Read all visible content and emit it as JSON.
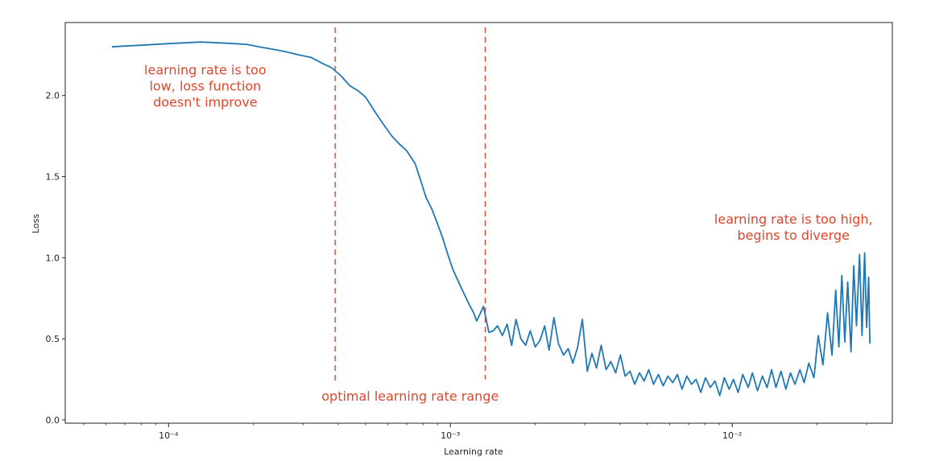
{
  "chart_data": {
    "type": "line",
    "xlabel": "Learning rate",
    "ylabel": "Loss",
    "xscale": "log",
    "xlim": [
      4.3e-05,
      0.037
    ],
    "ylim": [
      -0.02,
      2.45
    ],
    "x_ticks": [
      {
        "value": 0.0001,
        "label": "10⁻⁴"
      },
      {
        "value": 0.001,
        "label": "10⁻³"
      },
      {
        "value": 0.01,
        "label": "10⁻²"
      }
    ],
    "y_ticks": [
      {
        "value": 0.0,
        "label": "0.0"
      },
      {
        "value": 0.5,
        "label": "0.5"
      },
      {
        "value": 1.0,
        "label": "1.0"
      },
      {
        "value": 1.5,
        "label": "1.5"
      },
      {
        "value": 2.0,
        "label": "2.0"
      }
    ],
    "grid": false,
    "line_color": "#1f77b4",
    "annotation_color": "#e0452a",
    "series": [
      {
        "values": [
          [
            6.3e-05,
            2.3
          ],
          [
            7e-05,
            2.305
          ],
          [
            8e-05,
            2.31
          ],
          [
            9e-05,
            2.315
          ],
          [
            0.0001,
            2.32
          ],
          [
            0.000115,
            2.325
          ],
          [
            0.00013,
            2.33
          ],
          [
            0.00015,
            2.325
          ],
          [
            0.00017,
            2.32
          ],
          [
            0.00019,
            2.315
          ],
          [
            0.00021,
            2.3
          ],
          [
            0.000235,
            2.285
          ],
          [
            0.00026,
            2.27
          ],
          [
            0.00029,
            2.25
          ],
          [
            0.00032,
            2.235
          ],
          [
            0.00035,
            2.2
          ],
          [
            0.00038,
            2.17
          ],
          [
            0.00041,
            2.12
          ],
          [
            0.00044,
            2.06
          ],
          [
            0.00047,
            2.03
          ],
          [
            0.0005,
            1.99
          ],
          [
            0.00054,
            1.9
          ],
          [
            0.00058,
            1.82
          ],
          [
            0.00062,
            1.75
          ],
          [
            0.00066,
            1.7
          ],
          [
            0.0007,
            1.66
          ],
          [
            0.00075,
            1.58
          ],
          [
            0.00079,
            1.46
          ],
          [
            0.00082,
            1.37
          ],
          [
            0.00086,
            1.3
          ],
          [
            0.0009,
            1.21
          ],
          [
            0.00094,
            1.12
          ],
          [
            0.00098,
            1.02
          ],
          [
            0.00102,
            0.93
          ],
          [
            0.00107,
            0.85
          ],
          [
            0.00111,
            0.79
          ],
          [
            0.00116,
            0.72
          ],
          [
            0.00121,
            0.66
          ],
          [
            0.00124,
            0.61
          ],
          [
            0.00128,
            0.66
          ],
          [
            0.00131,
            0.7
          ],
          [
            0.00134,
            0.62
          ],
          [
            0.00137,
            0.54
          ],
          [
            0.00142,
            0.55
          ],
          [
            0.00147,
            0.58
          ],
          [
            0.00153,
            0.52
          ],
          [
            0.00159,
            0.59
          ],
          [
            0.00165,
            0.46
          ],
          [
            0.00171,
            0.62
          ],
          [
            0.00178,
            0.5
          ],
          [
            0.00185,
            0.46
          ],
          [
            0.00192,
            0.55
          ],
          [
            0.002,
            0.45
          ],
          [
            0.00208,
            0.49
          ],
          [
            0.00216,
            0.58
          ],
          [
            0.00224,
            0.43
          ],
          [
            0.00233,
            0.63
          ],
          [
            0.00242,
            0.47
          ],
          [
            0.00252,
            0.4
          ],
          [
            0.00262,
            0.44
          ],
          [
            0.00272,
            0.35
          ],
          [
            0.00283,
            0.45
          ],
          [
            0.00294,
            0.62
          ],
          [
            0.00306,
            0.3
          ],
          [
            0.00318,
            0.41
          ],
          [
            0.0033,
            0.32
          ],
          [
            0.00343,
            0.46
          ],
          [
            0.00357,
            0.31
          ],
          [
            0.00371,
            0.36
          ],
          [
            0.00386,
            0.29
          ],
          [
            0.00401,
            0.4
          ],
          [
            0.00417,
            0.27
          ],
          [
            0.00434,
            0.3
          ],
          [
            0.00451,
            0.22
          ],
          [
            0.00469,
            0.29
          ],
          [
            0.00487,
            0.24
          ],
          [
            0.00506,
            0.31
          ],
          [
            0.00526,
            0.22
          ],
          [
            0.00547,
            0.28
          ],
          [
            0.00569,
            0.21
          ],
          [
            0.00591,
            0.27
          ],
          [
            0.00615,
            0.23
          ],
          [
            0.00639,
            0.28
          ],
          [
            0.00664,
            0.19
          ],
          [
            0.0069,
            0.27
          ],
          [
            0.00717,
            0.22
          ],
          [
            0.00745,
            0.25
          ],
          [
            0.00774,
            0.17
          ],
          [
            0.00804,
            0.26
          ],
          [
            0.00836,
            0.2
          ],
          [
            0.00869,
            0.24
          ],
          [
            0.00903,
            0.15
          ],
          [
            0.00938,
            0.26
          ],
          [
            0.00975,
            0.19
          ],
          [
            0.0101,
            0.25
          ],
          [
            0.0105,
            0.17
          ],
          [
            0.0109,
            0.28
          ],
          [
            0.0114,
            0.2
          ],
          [
            0.0118,
            0.29
          ],
          [
            0.0123,
            0.18
          ],
          [
            0.0128,
            0.27
          ],
          [
            0.0133,
            0.2
          ],
          [
            0.0138,
            0.31
          ],
          [
            0.0143,
            0.2
          ],
          [
            0.0149,
            0.3
          ],
          [
            0.0155,
            0.19
          ],
          [
            0.0161,
            0.29
          ],
          [
            0.0167,
            0.22
          ],
          [
            0.0174,
            0.31
          ],
          [
            0.018,
            0.23
          ],
          [
            0.0187,
            0.35
          ],
          [
            0.0195,
            0.26
          ],
          [
            0.0202,
            0.52
          ],
          [
            0.021,
            0.34
          ],
          [
            0.0218,
            0.66
          ],
          [
            0.0226,
            0.4
          ],
          [
            0.0233,
            0.8
          ],
          [
            0.0239,
            0.45
          ],
          [
            0.0245,
            0.89
          ],
          [
            0.0251,
            0.48
          ],
          [
            0.0257,
            0.85
          ],
          [
            0.0264,
            0.42
          ],
          [
            0.027,
            0.95
          ],
          [
            0.0276,
            0.58
          ],
          [
            0.0283,
            1.02
          ],
          [
            0.0289,
            0.52
          ],
          [
            0.0295,
            1.03
          ],
          [
            0.03,
            0.57
          ],
          [
            0.0305,
            0.88
          ],
          [
            0.0308,
            0.47
          ]
        ]
      }
    ],
    "vlines": [
      {
        "x": 0.00039,
        "ymin": 0.24,
        "ymax": 2.42,
        "color": "#e0452a",
        "style": "dashed"
      },
      {
        "x": 0.00133,
        "ymin": 0.25,
        "ymax": 2.42,
        "color": "#e0452a",
        "style": "dashed"
      }
    ],
    "annotations": [
      {
        "lines": [
          "learning rate is too",
          "low, loss function",
          "doesn't improve"
        ],
        "x": 0.000135,
        "y": 2.13
      },
      {
        "lines": [
          "optimal learning rate range"
        ],
        "x": 0.00072,
        "y": 0.12
      },
      {
        "lines": [
          "learning rate is too high,",
          "begins to diverge"
        ],
        "x": 0.0165,
        "y": 1.21
      }
    ]
  }
}
